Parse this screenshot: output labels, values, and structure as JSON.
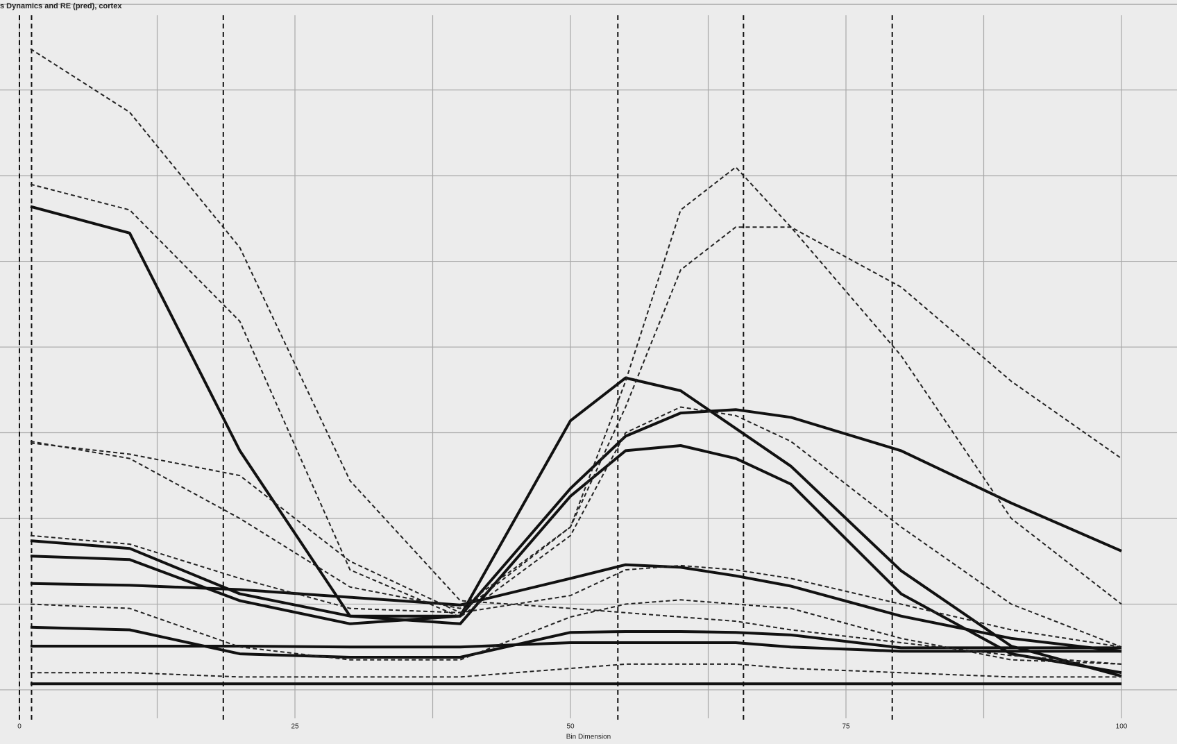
{
  "chart_data": {
    "type": "line",
    "title": "s Dynamics and RE (pred), cortex",
    "x_label": "Bin Dimension",
    "x": [
      1,
      10,
      20,
      30,
      40,
      50,
      55,
      60,
      65,
      70,
      80,
      90,
      100
    ],
    "xlim": [
      0,
      100
    ],
    "xticks": [
      0,
      25,
      50,
      75,
      100
    ],
    "xgrid": [
      12.5,
      37.5,
      62.5,
      87.5
    ],
    "ylim": [
      -0.6,
      8.05
    ],
    "yticks": [
      0,
      1,
      2,
      3,
      4,
      5,
      6,
      7,
      8
    ],
    "ytick_labels": false,
    "grid": true,
    "vlines": [
      0,
      1.1,
      18.5,
      54.3,
      65.7,
      79.2
    ],
    "series": [
      {
        "style": "solid",
        "color": "#111111",
        "values": [
          5.64,
          5.33,
          2.79,
          0.86,
          0.77,
          2.26,
          2.79,
          2.85,
          2.7,
          2.4,
          1.12,
          0.42,
          0.2
        ]
      },
      {
        "style": "solid",
        "color": "#111111",
        "values": [
          1.56,
          1.52,
          1.04,
          0.77,
          0.86,
          3.14,
          3.64,
          3.49,
          3.05,
          2.61,
          1.39,
          0.51,
          0.16
        ]
      },
      {
        "style": "solid",
        "color": "#111111",
        "values": [
          1.74,
          1.65,
          1.12,
          0.86,
          0.86,
          2.35,
          2.96,
          3.23,
          3.27,
          3.18,
          2.79,
          2.18,
          1.62
        ]
      },
      {
        "style": "solid",
        "color": "#111111",
        "values": [
          1.24,
          1.22,
          1.17,
          1.08,
          0.99,
          1.3,
          1.46,
          1.43,
          1.33,
          1.21,
          0.86,
          0.6,
          0.45
        ]
      },
      {
        "style": "solid",
        "color": "#111111",
        "values": [
          0.73,
          0.7,
          0.42,
          0.38,
          0.38,
          0.67,
          0.68,
          0.68,
          0.67,
          0.64,
          0.49,
          0.49,
          0.49
        ]
      },
      {
        "style": "solid",
        "color": "#111111",
        "values": [
          0.51,
          0.51,
          0.51,
          0.5,
          0.5,
          0.55,
          0.55,
          0.55,
          0.55,
          0.5,
          0.45,
          0.45,
          0.45
        ]
      },
      {
        "style": "solid",
        "color": "#111111",
        "values": [
          0.07,
          0.07,
          0.07,
          0.07,
          0.07,
          0.07,
          0.07,
          0.07,
          0.07,
          0.07,
          0.07,
          0.07,
          0.07
        ]
      },
      {
        "style": "dashed",
        "color": "#222222",
        "values": [
          7.48,
          6.74,
          5.16,
          2.44,
          1.04,
          0.95,
          0.9,
          0.85,
          0.8,
          0.7,
          0.55,
          0.4,
          0.3
        ]
      },
      {
        "style": "dashed",
        "color": "#222222",
        "values": [
          1.8,
          1.7,
          1.3,
          0.95,
          0.9,
          1.9,
          3.6,
          5.6,
          6.1,
          5.4,
          3.9,
          2.0,
          1.0
        ]
      },
      {
        "style": "dashed",
        "color": "#222222",
        "values": [
          2.9,
          2.7,
          2.0,
          1.2,
          0.95,
          1.9,
          3.3,
          4.9,
          5.4,
          5.4,
          4.7,
          3.6,
          2.7
        ]
      },
      {
        "style": "dashed",
        "color": "#222222",
        "values": [
          5.9,
          5.6,
          4.3,
          1.4,
          0.85,
          1.8,
          3.0,
          3.3,
          3.2,
          2.9,
          1.9,
          1.0,
          0.5
        ]
      },
      {
        "style": "dashed",
        "color": "#222222",
        "values": [
          2.88,
          2.75,
          2.5,
          1.5,
          0.9,
          1.1,
          1.4,
          1.45,
          1.4,
          1.3,
          1.0,
          0.7,
          0.5
        ]
      },
      {
        "style": "dashed",
        "color": "#222222",
        "values": [
          1.0,
          0.95,
          0.5,
          0.35,
          0.35,
          0.85,
          1.0,
          1.05,
          1.0,
          0.95,
          0.6,
          0.35,
          0.3
        ]
      },
      {
        "style": "dashed",
        "color": "#222222",
        "values": [
          0.2,
          0.2,
          0.15,
          0.15,
          0.15,
          0.25,
          0.3,
          0.3,
          0.3,
          0.25,
          0.2,
          0.15,
          0.15
        ]
      }
    ]
  }
}
